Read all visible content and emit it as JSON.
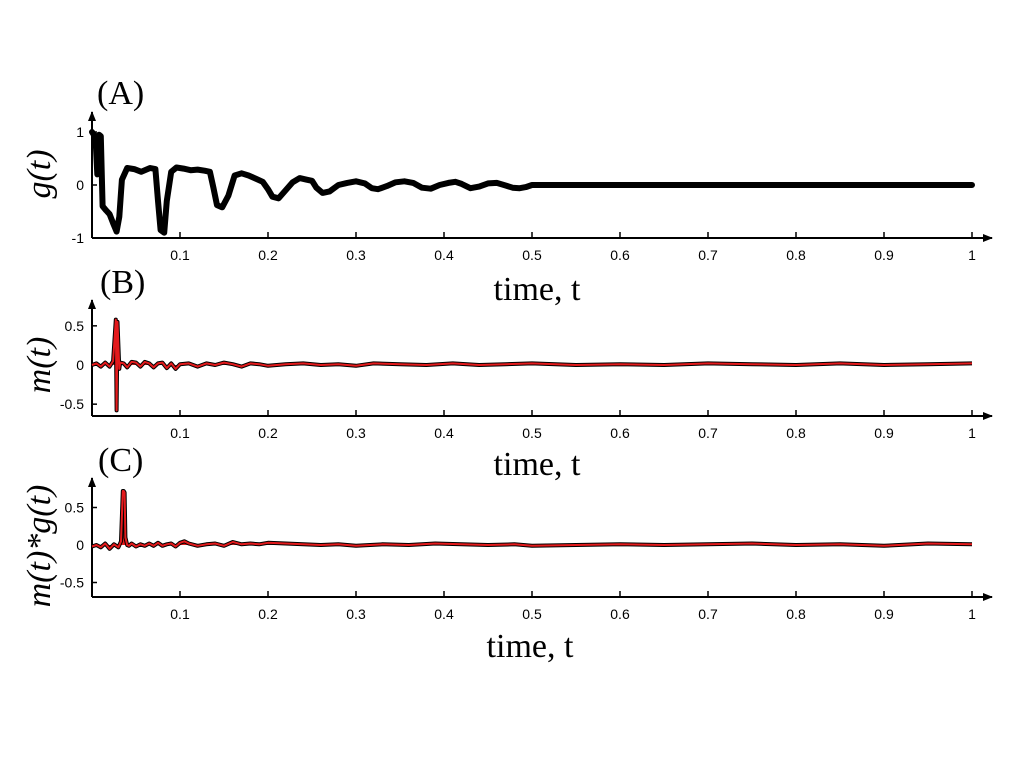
{
  "chart_data": [
    {
      "type": "line",
      "panel_label": "(A)",
      "xlabel": "time, t",
      "ylabel": "g(t)",
      "xlim": [
        0,
        1
      ],
      "ylim": [
        -1,
        1
      ],
      "xticks": [
        "0.1",
        "0.2",
        "0.3",
        "0.4",
        "0.5",
        "0.6",
        "0.7",
        "0.8",
        "0.9",
        "1"
      ],
      "yticks": [
        "1",
        "0",
        "-1"
      ],
      "grid": false,
      "series": [
        {
          "color": "#000000",
          "x": [
            0.0,
            0.004,
            0.006,
            0.008,
            0.01,
            0.012,
            0.016,
            0.02,
            0.024,
            0.028,
            0.031,
            0.034,
            0.04,
            0.048,
            0.056,
            0.066,
            0.072,
            0.075,
            0.078,
            0.082,
            0.085,
            0.09,
            0.096,
            0.104,
            0.112,
            0.12,
            0.128,
            0.134,
            0.138,
            0.142,
            0.148,
            0.155,
            0.162,
            0.17,
            0.178,
            0.186,
            0.194,
            0.2,
            0.205,
            0.212,
            0.22,
            0.228,
            0.236,
            0.244,
            0.25,
            0.255,
            0.262,
            0.27,
            0.28,
            0.29,
            0.3,
            0.31,
            0.318,
            0.325,
            0.335,
            0.345,
            0.355,
            0.365,
            0.375,
            0.385,
            0.395,
            0.405,
            0.413,
            0.42,
            0.43,
            0.44,
            0.45,
            0.46,
            0.47,
            0.478,
            0.486,
            0.493,
            0.5,
            1.0
          ],
          "y": [
            1.0,
            0.9,
            0.2,
            0.95,
            0.92,
            -0.4,
            -0.48,
            -0.55,
            -0.72,
            -0.88,
            -0.6,
            0.1,
            0.32,
            0.3,
            0.25,
            0.32,
            0.3,
            -0.3,
            -0.85,
            -0.9,
            -0.3,
            0.25,
            0.33,
            0.31,
            0.28,
            0.29,
            0.27,
            0.25,
            -0.05,
            -0.38,
            -0.42,
            -0.2,
            0.18,
            0.22,
            0.18,
            0.12,
            0.06,
            -0.08,
            -0.22,
            -0.25,
            -0.1,
            0.05,
            0.13,
            0.1,
            0.08,
            -0.05,
            -0.15,
            -0.12,
            0.0,
            0.04,
            0.07,
            0.03,
            -0.06,
            -0.08,
            -0.02,
            0.05,
            0.07,
            0.04,
            -0.05,
            -0.07,
            0.0,
            0.04,
            0.06,
            0.02,
            -0.06,
            -0.03,
            0.03,
            0.04,
            -0.01,
            -0.05,
            -0.06,
            -0.04,
            0.0,
            0.0
          ]
        }
      ]
    },
    {
      "type": "area",
      "panel_label": "(B)",
      "xlabel": "time, t",
      "ylabel": "m(t)",
      "xlim": [
        0,
        1
      ],
      "ylim": [
        -0.6,
        0.6
      ],
      "xticks": [
        "0.1",
        "0.2",
        "0.3",
        "0.4",
        "0.5",
        "0.6",
        "0.7",
        "0.8",
        "0.9",
        "1"
      ],
      "yticks": [
        "0.5",
        "0",
        "-0.5"
      ],
      "grid": false,
      "series": [
        {
          "color": "#e41a1c",
          "x": [
            0.0,
            0.005,
            0.01,
            0.015,
            0.02,
            0.024,
            0.027,
            0.028,
            0.029,
            0.031,
            0.032,
            0.036,
            0.04,
            0.045,
            0.05,
            0.055,
            0.06,
            0.065,
            0.07,
            0.075,
            0.08,
            0.085,
            0.09,
            0.095,
            0.1,
            0.11,
            0.12,
            0.13,
            0.14,
            0.15,
            0.16,
            0.17,
            0.18,
            0.19,
            0.2,
            0.22,
            0.24,
            0.26,
            0.28,
            0.3,
            0.32,
            0.35,
            0.38,
            0.41,
            0.44,
            0.47,
            0.5,
            0.55,
            0.6,
            0.65,
            0.7,
            0.75,
            0.8,
            0.85,
            0.9,
            0.95,
            1.0
          ],
          "y": [
            0.0,
            0.02,
            -0.02,
            0.03,
            -0.02,
            0.05,
            0.58,
            -0.58,
            0.55,
            -0.05,
            0.03,
            0.02,
            -0.03,
            0.04,
            0.03,
            -0.02,
            0.04,
            0.02,
            -0.03,
            0.02,
            0.03,
            -0.04,
            0.02,
            -0.05,
            0.01,
            0.02,
            -0.02,
            0.02,
            0.0,
            0.03,
            0.01,
            -0.02,
            0.02,
            0.01,
            -0.01,
            0.01,
            0.02,
            0.0,
            0.01,
            -0.01,
            0.02,
            0.01,
            0.0,
            0.02,
            0.0,
            0.01,
            0.02,
            0.0,
            0.01,
            0.0,
            0.02,
            0.01,
            0.0,
            0.02,
            0.0,
            0.01,
            0.02
          ]
        }
      ]
    },
    {
      "type": "area",
      "panel_label": "(C)",
      "xlabel": "time, t",
      "ylabel": "m(t)*g(t)",
      "xlim": [
        0,
        1
      ],
      "ylim": [
        -0.6,
        0.6
      ],
      "xticks": [
        "0.1",
        "0.2",
        "0.3",
        "0.4",
        "0.5",
        "0.6",
        "0.7",
        "0.8",
        "0.9",
        "1"
      ],
      "yticks": [
        "0.5",
        "0",
        "-0.5"
      ],
      "grid": false,
      "series": [
        {
          "color": "#e41a1c",
          "x": [
            0.0,
            0.005,
            0.01,
            0.015,
            0.02,
            0.025,
            0.03,
            0.033,
            0.035,
            0.036,
            0.037,
            0.038,
            0.04,
            0.042,
            0.045,
            0.05,
            0.055,
            0.06,
            0.065,
            0.07,
            0.075,
            0.08,
            0.085,
            0.09,
            0.095,
            0.1,
            0.105,
            0.11,
            0.12,
            0.13,
            0.14,
            0.15,
            0.16,
            0.17,
            0.18,
            0.19,
            0.2,
            0.22,
            0.24,
            0.26,
            0.28,
            0.3,
            0.33,
            0.36,
            0.39,
            0.42,
            0.45,
            0.48,
            0.5,
            0.55,
            0.6,
            0.65,
            0.7,
            0.75,
            0.8,
            0.85,
            0.9,
            0.95,
            1.0
          ],
          "y": [
            -0.02,
            0.0,
            -0.03,
            0.02,
            -0.05,
            0.01,
            -0.03,
            0.05,
            0.72,
            0.72,
            0.7,
            0.1,
            0.0,
            -0.01,
            0.02,
            -0.02,
            0.01,
            -0.01,
            0.02,
            -0.01,
            0.03,
            -0.01,
            0.01,
            0.02,
            -0.02,
            0.03,
            0.05,
            0.02,
            -0.01,
            0.01,
            0.02,
            -0.01,
            0.04,
            0.01,
            0.02,
            0.01,
            0.03,
            0.02,
            0.01,
            0.0,
            0.01,
            -0.01,
            0.01,
            0.0,
            0.02,
            0.01,
            0.0,
            0.01,
            -0.01,
            0.0,
            0.01,
            0.0,
            0.01,
            0.02,
            0.0,
            0.01,
            -0.01,
            0.02,
            0.01
          ]
        }
      ]
    }
  ]
}
